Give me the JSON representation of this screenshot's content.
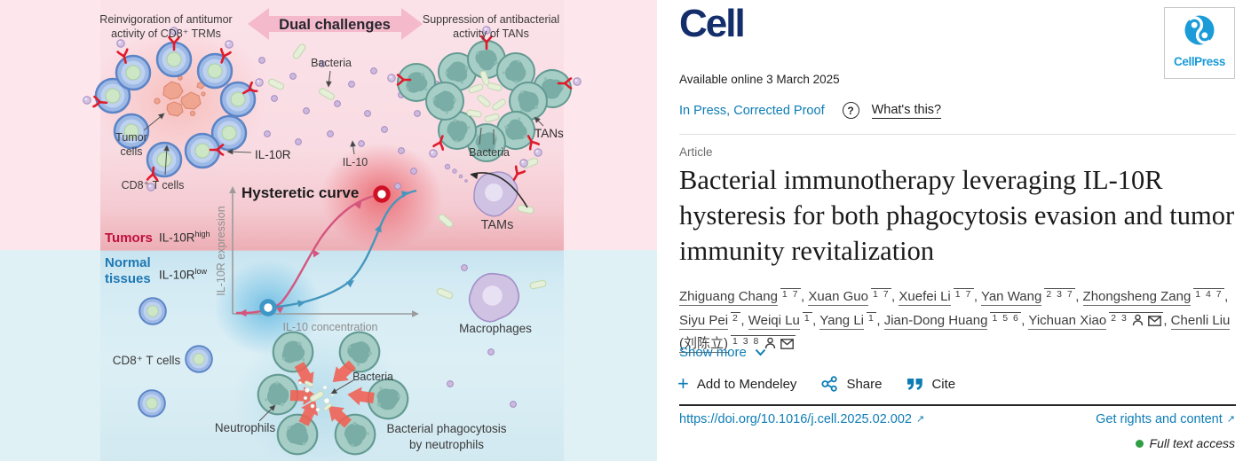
{
  "colors": {
    "link_blue": "#0d7cb5",
    "cell_navy": "#132e6b",
    "cellpress_blue": "#1b9bd7",
    "access_green": "#2f9e44",
    "tumors_red": "#c00f3c",
    "normal_blue": "#1e78b4",
    "curve_pink": "#d4557e",
    "curve_blue": "#4596be"
  },
  "abstract": {
    "reinvigoration": "Reinvigoration of antitumor\nactivity of CD8⁺ TRMs",
    "dual_challenges": "Dual challenges",
    "suppression": "Suppression of antibacterial\nactivity of TANs",
    "bacteria_top": "Bacteria",
    "tumor_cells": "Tumor\ncells",
    "cd8_t_cells": "CD8⁺ T cells",
    "il10r": "IL-10R",
    "il10": "IL-10",
    "tans": "TANs",
    "bacteria_right": "Bacteria",
    "tams": "TAMs",
    "hysteretic_curve": "Hysteretic curve",
    "tumors": "Tumors",
    "il10r_high_base": "IL-10R",
    "il10r_high_sup": "high",
    "normal_tissues": "Normal\ntissues",
    "il10r_low_base": "IL-10R",
    "il10r_low_sup": "low",
    "y_axis": "IL-10R expression",
    "x_axis": "IL-10 concentration",
    "macrophages": "Macrophages",
    "cd8_t_cells_bottom": "CD8⁺ T cells",
    "neutrophils": "Neutrophils",
    "bacteria_bottom": "Bacteria",
    "phagocytosis": "Bacterial phagocytosis\nby neutrophils"
  },
  "article": {
    "journal": "Cell",
    "publisher": "CellPress",
    "available_online": "Available online 3 March 2025",
    "status": "In Press, Corrected Proof",
    "whats_this": "What's this?",
    "type": "Article",
    "title": "Bacterial immunotherapy leveraging IL-10R hysteresis for both phagocytosis evasion and tumor immunity revitalization",
    "authors": [
      {
        "name": "Zhiguang Chang",
        "sup": "1 7"
      },
      {
        "name": "Xuan Guo",
        "sup": "1 7"
      },
      {
        "name": "Xuefei Li",
        "sup": "1 7"
      },
      {
        "name": "Yan Wang",
        "sup": "2 3 7"
      },
      {
        "name": "Zhongsheng Zang",
        "sup": "1 4 7"
      },
      {
        "name": "Siyu Pei",
        "sup": "2"
      },
      {
        "name": "Weiqi Lu",
        "sup": "1"
      },
      {
        "name": "Yang Li",
        "sup": "1"
      },
      {
        "name": "Jian-Dong Huang",
        "sup": "1 5 6"
      },
      {
        "name": "Yichuan Xiao",
        "sup": "2 3",
        "icons": [
          "person",
          "envelope"
        ]
      },
      {
        "name": "Chenli Liu (刘陈立)",
        "sup": "1 3 8",
        "icons": [
          "person",
          "envelope"
        ]
      }
    ],
    "show_more": "Show more",
    "actions": {
      "mendeley": "Add to Mendeley",
      "share": "Share",
      "cite": "Cite"
    },
    "doi": "https://doi.org/10.1016/j.cell.2025.02.002",
    "rights": "Get rights and content",
    "access": "Full text access"
  }
}
